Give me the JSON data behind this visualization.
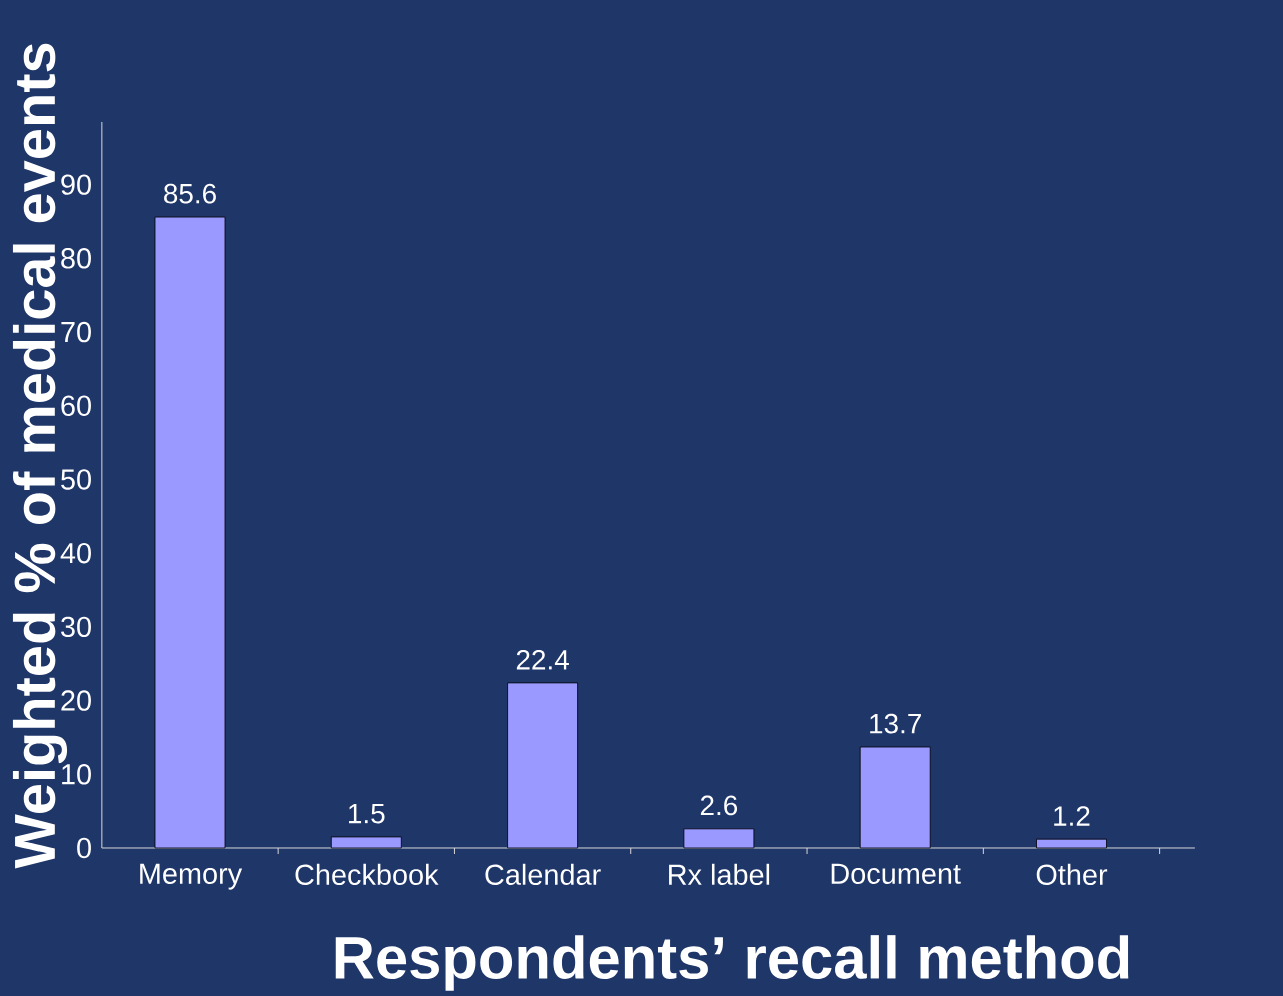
{
  "chart_data": {
    "type": "bar",
    "xlabel": "Respondents’ recall method",
    "ylabel": "Weighted % of medical events",
    "categories": [
      "Memory",
      "Checkbook",
      "Calendar",
      "Rx label",
      "Document",
      "Other"
    ],
    "values": [
      85.6,
      1.5,
      22.4,
      2.6,
      13.7,
      1.2
    ],
    "color": "#9999ff",
    "ylim": [
      0,
      98.5
    ],
    "yticks": [
      0,
      10,
      20,
      30,
      40,
      50,
      60,
      70,
      80,
      90
    ],
    "data_labels": true
  }
}
